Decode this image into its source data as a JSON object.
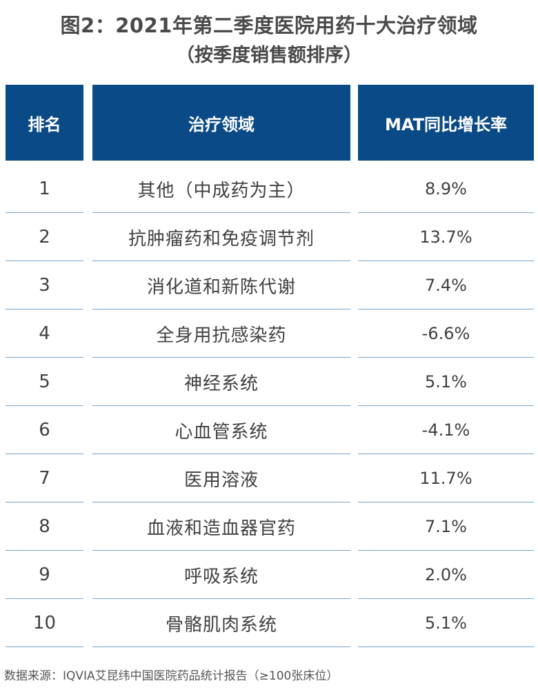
{
  "title_line1": "图2：2021年第二季度医院用药十大治疗领域",
  "title_line2": "（按季度销售额排序）",
  "header": {
    "rank": "排名",
    "area": "治疗领域",
    "mat": "MAT同比增长率"
  },
  "colors": {
    "header_bg": "#0a4a86",
    "header_text": "#ffffff",
    "row_divider": "#7aa3c7"
  },
  "chart_data": {
    "type": "table",
    "title": "图2：2021年第二季度医院用药十大治疗领域",
    "subtitle": "（按季度销售额排序）",
    "columns": [
      "排名",
      "治疗领域",
      "MAT同比增长率"
    ],
    "rows": [
      {
        "rank": "1",
        "area": "其他（中成药为主）",
        "mat": "8.9%"
      },
      {
        "rank": "2",
        "area": "抗肿瘤药和免疫调节剂",
        "mat": "13.7%"
      },
      {
        "rank": "3",
        "area": "消化道和新陈代谢",
        "mat": "7.4%"
      },
      {
        "rank": "4",
        "area": "全身用抗感染药",
        "mat": "-6.6%"
      },
      {
        "rank": "5",
        "area": "神经系统",
        "mat": "5.1%"
      },
      {
        "rank": "6",
        "area": "心血管系统",
        "mat": "-4.1%"
      },
      {
        "rank": "7",
        "area": "医用溶液",
        "mat": "11.7%"
      },
      {
        "rank": "8",
        "area": "血液和造血器官药",
        "mat": "7.1%"
      },
      {
        "rank": "9",
        "area": "呼吸系统",
        "mat": "2.0%"
      },
      {
        "rank": "10",
        "area": "骨骼肌肉系统",
        "mat": "5.1%"
      }
    ]
  },
  "source": "数据来源：IQVIA艾昆纬中国医院药品统计报告（≥100张床位）"
}
